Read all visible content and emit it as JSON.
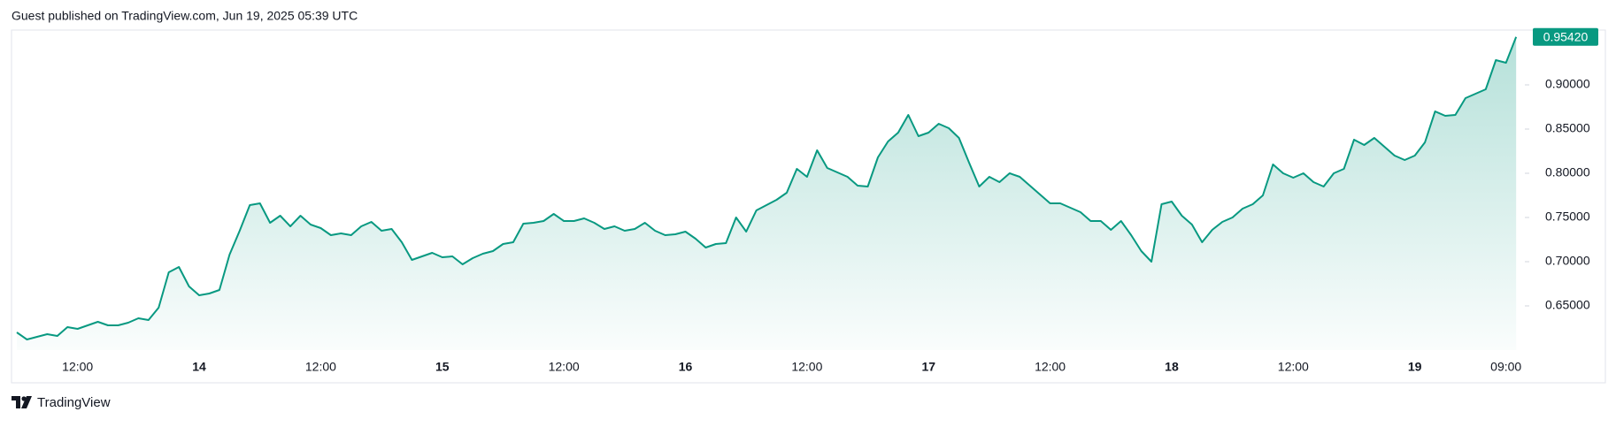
{
  "header": {
    "text": "Guest published on TradingView.com, Jun 19, 2025 05:39 UTC"
  },
  "footer": {
    "brand": "TradingView"
  },
  "chart_data": {
    "type": "area",
    "color": "#089981",
    "categories": [
      null,
      null,
      null,
      null,
      null,
      null,
      "12:00",
      null,
      null,
      null,
      null,
      null,
      null,
      null,
      null,
      null,
      null,
      null,
      "14",
      null,
      null,
      null,
      null,
      null,
      null,
      null,
      null,
      null,
      null,
      null,
      "12:00",
      null,
      null,
      null,
      null,
      null,
      null,
      null,
      null,
      null,
      null,
      null,
      "15",
      null,
      null,
      null,
      null,
      null,
      null,
      null,
      null,
      null,
      null,
      null,
      "12:00",
      null,
      null,
      null,
      null,
      null,
      null,
      null,
      null,
      null,
      null,
      null,
      "16",
      null,
      null,
      null,
      null,
      null,
      null,
      null,
      null,
      null,
      null,
      null,
      "12:00",
      null,
      null,
      null,
      null,
      null,
      null,
      null,
      null,
      null,
      null,
      null,
      "17",
      null,
      null,
      null,
      null,
      null,
      null,
      null,
      null,
      null,
      null,
      null,
      "12:00",
      null,
      null,
      null,
      null,
      null,
      null,
      null,
      null,
      null,
      null,
      null,
      "18",
      null,
      null,
      null,
      null,
      null,
      null,
      null,
      null,
      null,
      null,
      null,
      "12:00",
      null,
      null,
      null,
      null,
      null,
      null,
      null,
      null,
      null,
      null,
      null,
      "19",
      null,
      null,
      null,
      null,
      null,
      null,
      null,
      null,
      "09:00",
      null
    ],
    "values": [
      0.62,
      0.612,
      0.615,
      0.618,
      0.616,
      0.626,
      0.624,
      0.628,
      0.632,
      0.628,
      0.628,
      0.631,
      0.636,
      0.634,
      0.648,
      0.688,
      0.694,
      0.672,
      0.662,
      0.664,
      0.668,
      0.708,
      0.735,
      0.764,
      0.766,
      0.744,
      0.752,
      0.74,
      0.752,
      0.742,
      0.738,
      0.73,
      0.732,
      0.73,
      0.74,
      0.745,
      0.735,
      0.737,
      0.722,
      0.702,
      0.706,
      0.71,
      0.705,
      0.706,
      0.697,
      0.704,
      0.709,
      0.712,
      0.72,
      0.722,
      0.743,
      0.744,
      0.746,
      0.754,
      0.746,
      0.746,
      0.749,
      0.744,
      0.737,
      0.74,
      0.735,
      0.737,
      0.744,
      0.735,
      0.73,
      0.731,
      0.734,
      0.726,
      0.716,
      0.72,
      0.721,
      0.75,
      0.734,
      0.758,
      0.764,
      0.77,
      0.778,
      0.805,
      0.796,
      0.826,
      0.806,
      0.801,
      0.796,
      0.786,
      0.785,
      0.818,
      0.836,
      0.846,
      0.866,
      0.842,
      0.846,
      0.856,
      0.851,
      0.84,
      0.812,
      0.785,
      0.796,
      0.79,
      0.8,
      0.796,
      0.786,
      0.776,
      0.766,
      0.766,
      0.761,
      0.756,
      0.746,
      0.746,
      0.736,
      0.746,
      0.73,
      0.712,
      0.7,
      0.765,
      0.768,
      0.752,
      0.742,
      0.722,
      0.736,
      0.745,
      0.75,
      0.76,
      0.765,
      0.775,
      0.81,
      0.8,
      0.795,
      0.8,
      0.79,
      0.785,
      0.8,
      0.805,
      0.838,
      0.832,
      0.84,
      0.83,
      0.82,
      0.815,
      0.82,
      0.835,
      0.87,
      0.865,
      0.866,
      0.885,
      0.89,
      0.895,
      0.928,
      0.925,
      0.9542
    ],
    "value_labels": [
      null,
      null,
      null,
      null,
      null,
      null,
      null,
      null,
      null,
      null,
      null,
      null,
      null,
      null,
      null,
      null,
      null,
      null,
      null,
      null,
      null,
      null,
      null,
      null,
      null,
      null,
      null,
      null,
      null,
      null,
      null,
      null,
      null,
      null,
      null,
      null,
      null,
      null,
      null,
      null,
      null,
      null,
      null,
      null,
      null,
      null,
      null,
      null,
      null,
      null,
      null,
      null,
      null,
      null,
      null,
      null,
      null,
      null,
      null,
      null,
      null,
      null,
      null,
      null,
      null,
      null,
      null,
      null,
      null,
      null,
      null,
      null,
      null,
      null,
      null,
      null,
      null,
      null,
      null,
      null,
      null,
      null,
      null,
      null,
      null,
      null,
      null,
      null,
      null,
      null,
      null,
      null,
      null,
      null,
      null,
      null,
      null,
      null,
      null,
      null,
      null,
      null,
      null,
      null,
      null,
      null,
      null,
      null,
      null,
      null,
      null,
      null,
      null,
      null,
      null,
      null,
      null,
      null,
      null,
      null,
      null,
      null,
      null,
      null,
      null,
      null,
      null,
      null,
      null,
      null,
      null,
      null,
      null,
      null,
      null,
      null,
      null,
      null,
      null,
      null,
      null,
      null,
      null,
      null,
      null,
      null,
      null,
      null,
      "0.95420"
    ],
    "ylim": [
      0.6,
      0.962
    ],
    "yticks": [
      {
        "value": 0.65,
        "label": "0.65000"
      },
      {
        "value": 0.7,
        "label": "0.70000"
      },
      {
        "value": 0.75,
        "label": "0.75000"
      },
      {
        "value": 0.8,
        "label": "0.80000"
      },
      {
        "value": 0.85,
        "label": "0.85000"
      },
      {
        "value": 0.9,
        "label": "0.90000"
      }
    ],
    "grid": false
  }
}
